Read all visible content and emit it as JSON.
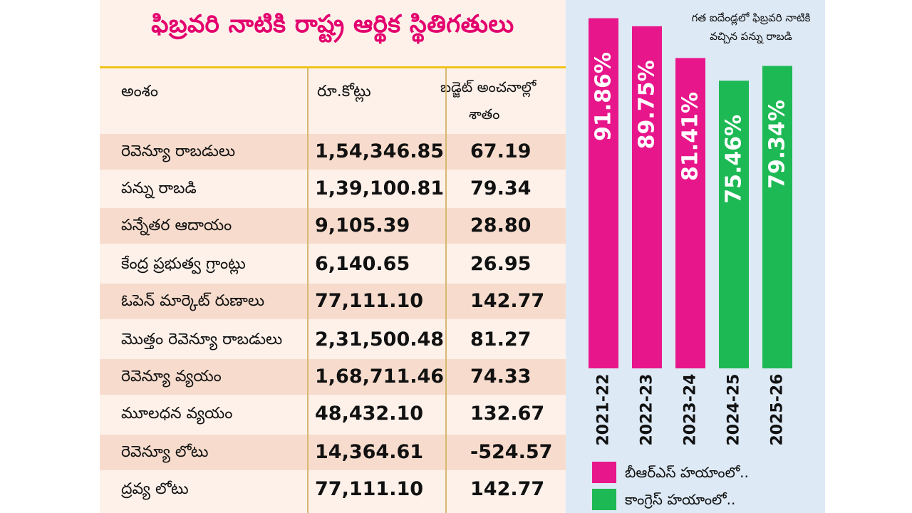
{
  "title": "ఫిబ్రవరి నాటికి రాష్ట్ర ఆర్థిక స్థితిగతులు",
  "table": {
    "headers": [
      "అంశం",
      "రూ.కోట్లు",
      "బడ్జెట్ అంచనాల్లో",
      "శాతం"
    ],
    "rows": [
      {
        "item": "రెవెన్యూ రాబడులు",
        "amount": "1,54,346.85",
        "percent": "67.19"
      },
      {
        "item": "పన్ను రాబడి",
        "amount": "1,39,100.81",
        "percent": "79.34"
      },
      {
        "item": "పన్నేతర ఆదాయం",
        "amount": "9,105.39",
        "percent": "28.80"
      },
      {
        "item": "కేంద్ర ప్రభుత్వ గ్రాంట్లు",
        "amount": "6,140.65",
        "percent": "26.95"
      },
      {
        "item": "ఓపెన్ మార్కెట్ రుణాలు",
        "amount": "77,111.10",
        "percent": "142.77"
      },
      {
        "item": "మొత్తం రెవెన్యూ రాబడులు",
        "amount": "2,31,500.48",
        "percent": "81.27"
      },
      {
        "item": "రెవెన్యూ వ్యయం",
        "amount": "1,68,711.46",
        "percent": "74.33"
      },
      {
        "item": "మూలధన వ్యయం",
        "amount": "48,432.10",
        "percent": "132.67"
      },
      {
        "item": "రెవెన్యూ లోటు",
        "amount": "14,364.61",
        "percent": "-524.57"
      },
      {
        "item": "ద్రవ్య లోటు",
        "amount": "77,111.10",
        "percent": "142.77"
      }
    ]
  },
  "chart_note": "గత ఐదేండ్లలో ఫిబ్రవరి నాటికి వచ్చిన పన్ను రాబడి",
  "chart_data": {
    "type": "bar",
    "title": "గత ఐదేండ్లలో ఫిబ్రవరి నాటికి వచ్చిన పన్ను రాబడి",
    "categories": [
      "2021-22",
      "2022-23",
      "2023-24",
      "2024-25",
      "2025-26"
    ],
    "values": [
      91.86,
      89.75,
      81.41,
      75.46,
      79.34
    ],
    "labels": [
      "91.86%",
      "89.75%",
      "81.41%",
      "75.46%",
      "79.34%"
    ],
    "series_index": [
      0,
      0,
      0,
      1,
      1
    ],
    "ylim": [
      0,
      100
    ],
    "xlabel": "",
    "ylabel": "",
    "legend": [
      {
        "label": "బీఆర్ఎస్ హయాంలో..",
        "color": "#e8168b"
      },
      {
        "label": "కాంగ్రెస్ హయాంలో..",
        "color": "#1db954"
      }
    ]
  },
  "colors": {
    "title": "#e3006e",
    "brs": "#e8168b",
    "congress": "#1db954",
    "accent_rule": "#f0c419"
  }
}
